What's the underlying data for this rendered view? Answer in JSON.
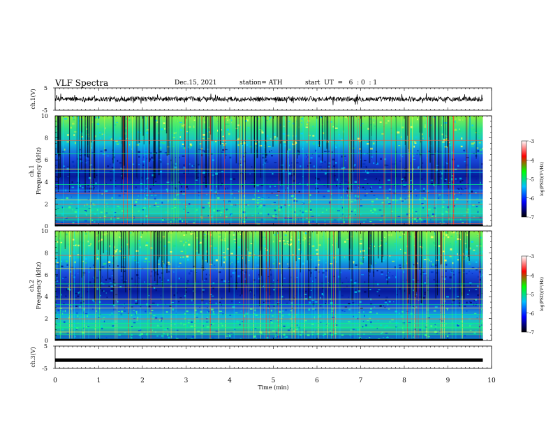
{
  "header": {
    "title": "VLF  Spectra",
    "date": "Dec.15, 2021",
    "station": "station= ATH",
    "start_ut": "start  UT  =   6  : 0  : 1"
  },
  "chart_data": [
    {
      "type": "line",
      "name": "ch1-waveform",
      "ylabel": "ch.1(V)",
      "ylim": [
        -5,
        5
      ],
      "yticks": [
        "5",
        "-5"
      ],
      "baseline": 0,
      "x_extent_min": [
        0,
        9.8
      ]
    },
    {
      "type": "heatmap",
      "name": "ch1-spectrogram",
      "ylabel_lines": [
        "ch.1",
        "Frequency  (kHz)"
      ],
      "ylim": [
        0,
        10
      ],
      "yticks": [
        "0",
        "2",
        "4",
        "6",
        "8",
        "10"
      ],
      "x_extent_min": [
        0,
        9.8
      ],
      "colorbar": {
        "label": "log(PSD)(V²/Hz)",
        "range": [
          -7,
          -3
        ],
        "ticks": [
          "-3",
          "-4",
          "-5",
          "-6",
          "-7"
        ]
      }
    },
    {
      "type": "heatmap",
      "name": "ch2-spectrogram",
      "ylabel_lines": [
        "ch.2",
        "Frequency  (kHz)"
      ],
      "ylim": [
        0,
        10
      ],
      "yticks": [
        "0",
        "2",
        "4",
        "6",
        "8",
        "10"
      ],
      "x_extent_min": [
        0,
        9.8
      ],
      "colorbar": {
        "label": "log(PSD)(V²/Hz)",
        "range": [
          -7,
          -3
        ],
        "ticks": [
          "-3",
          "-4",
          "-5",
          "-6",
          "-7"
        ]
      }
    },
    {
      "type": "line",
      "name": "ch3-waveform",
      "ylabel": "ch.3(V)",
      "ylim": [
        -5,
        5
      ],
      "yticks": [
        "5",
        "-5"
      ],
      "baseline": -1.3,
      "x_extent_min": [
        0,
        9.8
      ]
    }
  ],
  "x_axis": {
    "label": "Time  (min)",
    "xlim": [
      0,
      10
    ],
    "ticks": [
      "0",
      "1",
      "2",
      "3",
      "4",
      "5",
      "6",
      "7",
      "8",
      "9",
      "10"
    ]
  },
  "colors": {
    "colormap": [
      "#ffffff",
      "#ff0000",
      "#00ff00",
      "#00c0ff",
      "#0000ff",
      "#000000"
    ],
    "waveform": "#000000"
  }
}
